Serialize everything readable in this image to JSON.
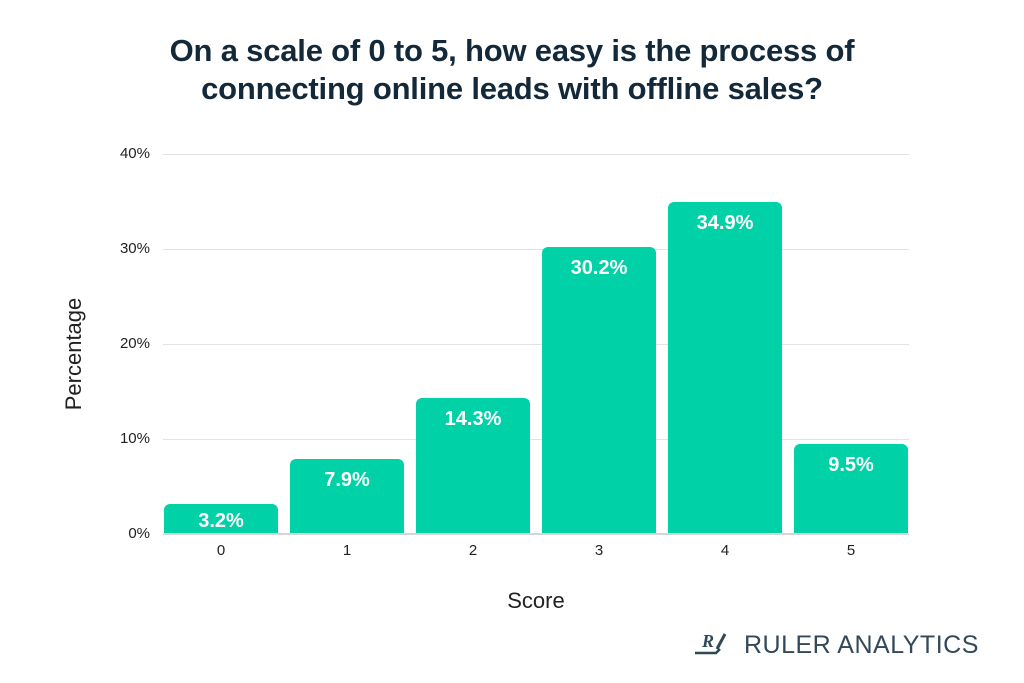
{
  "title_line1": "On a scale of 0 to 5, how easy is the process of",
  "title_line2": "connecting online leads with offline sales?",
  "xlabel": "Score",
  "ylabel": "Percentage",
  "yticks": [
    "0%",
    "10%",
    "20%",
    "30%",
    "40%"
  ],
  "bars": [
    {
      "category": "0",
      "value": 3.2,
      "label": "3.2%"
    },
    {
      "category": "1",
      "value": 7.9,
      "label": "7.9%"
    },
    {
      "category": "2",
      "value": 14.3,
      "label": "14.3%"
    },
    {
      "category": "3",
      "value": 30.2,
      "label": "30.2%"
    },
    {
      "category": "4",
      "value": 34.9,
      "label": "34.9%"
    },
    {
      "category": "5",
      "value": 9.5,
      "label": "9.5%"
    }
  ],
  "brand": {
    "logo_icon": "ruler-analytics-logo-icon",
    "name": "RULER ANALYTICS"
  },
  "colors": {
    "bar": "#00d1a7",
    "title": "#13293a",
    "brand": "#2f4858"
  },
  "chart_data": {
    "type": "bar",
    "title": "On a scale of 0 to 5, how easy is the process of connecting online leads with offline sales?",
    "categories": [
      "0",
      "1",
      "2",
      "3",
      "4",
      "5"
    ],
    "values": [
      3.2,
      7.9,
      14.3,
      30.2,
      34.9,
      9.5
    ],
    "xlabel": "Score",
    "ylabel": "Percentage",
    "ylim": [
      0,
      40
    ],
    "yticks": [
      0,
      10,
      20,
      30,
      40
    ],
    "ytick_format": "%",
    "grid": true,
    "legend": null,
    "data_labels": [
      "3.2%",
      "7.9%",
      "14.3%",
      "30.2%",
      "34.9%",
      "9.5%"
    ]
  }
}
